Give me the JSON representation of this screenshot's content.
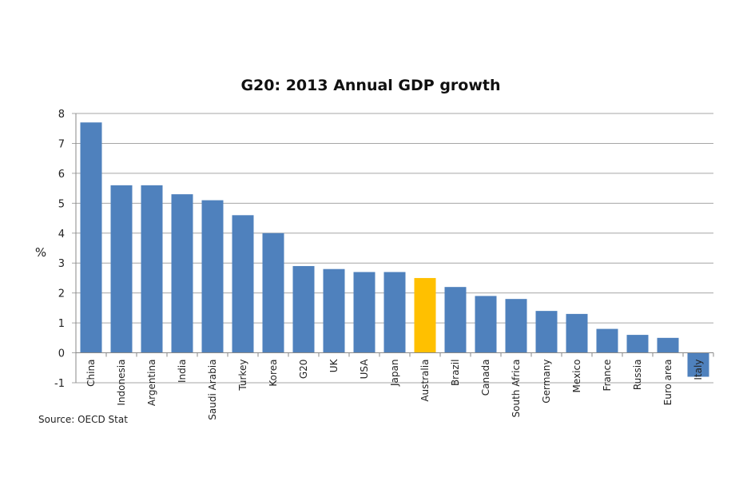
{
  "chart_data": {
    "type": "bar",
    "title": "G20: 2013 Annual GDP growth",
    "ylabel": "%",
    "xlabel": "",
    "ylim": [
      -1,
      8
    ],
    "yticks": [
      -1,
      0,
      1,
      2,
      3,
      4,
      5,
      6,
      7,
      8
    ],
    "grid": true,
    "categories": [
      "China",
      "Indonesia",
      "Argentina",
      "India",
      "Saudi Arabia",
      "Turkey",
      "Korea",
      "G20",
      "UK",
      "USA",
      "Japan",
      "Australia",
      "Brazil",
      "Canada",
      "South Africa",
      "Germany",
      "Mexico",
      "France",
      "Russia",
      "Euro area",
      "Italy"
    ],
    "values": [
      7.7,
      5.6,
      5.6,
      5.3,
      5.1,
      4.6,
      4.0,
      2.9,
      2.8,
      2.7,
      2.7,
      2.5,
      2.2,
      1.9,
      1.8,
      1.4,
      1.3,
      0.8,
      0.6,
      0.5,
      -0.8
    ],
    "colors": {
      "default": "#4f81bd",
      "highlight": "#ffc000"
    },
    "highlight": "Australia",
    "source": "Source: OECD Stat"
  }
}
